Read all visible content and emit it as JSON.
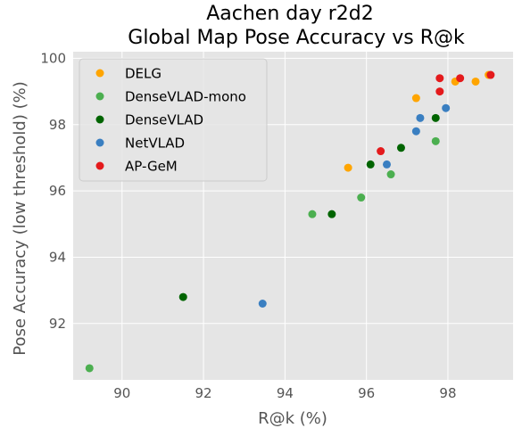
{
  "chart_data": {
    "type": "scatter",
    "title": [
      "Aachen day r2d2",
      "Global Map Pose Accuracy vs R@k"
    ],
    "xlabel": "R@k (%)",
    "ylabel": "Pose Accuracy (low threshold) (%)",
    "xlim": [
      88.8,
      99.6
    ],
    "ylim": [
      90.3,
      100.2
    ],
    "xticks": [
      90,
      92,
      94,
      96,
      98
    ],
    "yticks": [
      92,
      94,
      96,
      98,
      100
    ],
    "grid": true,
    "legend": "top-left",
    "series": [
      {
        "name": "DELG",
        "color": "#ffa500",
        "points": [
          [
            95.55,
            96.7
          ],
          [
            97.22,
            98.8
          ],
          [
            98.18,
            99.3
          ],
          [
            98.68,
            99.3
          ],
          [
            99.0,
            99.5
          ]
        ]
      },
      {
        "name": "DenseVLAD-mono",
        "color": "#4caf50",
        "points": [
          [
            89.2,
            90.65
          ],
          [
            94.67,
            95.3
          ],
          [
            95.87,
            95.8
          ],
          [
            96.6,
            96.5
          ],
          [
            97.7,
            97.5
          ]
        ]
      },
      {
        "name": "DenseVLAD",
        "color": "#006400",
        "points": [
          [
            91.5,
            92.8
          ],
          [
            95.15,
            95.3
          ],
          [
            96.1,
            96.8
          ],
          [
            96.85,
            97.3
          ],
          [
            97.7,
            98.2
          ]
        ]
      },
      {
        "name": "NetVLAD",
        "color": "#3a7fc1",
        "points": [
          [
            93.45,
            92.6
          ],
          [
            96.5,
            96.8
          ],
          [
            97.22,
            97.8
          ],
          [
            97.32,
            98.2
          ],
          [
            97.95,
            98.5
          ]
        ]
      },
      {
        "name": "AP-GeM",
        "color": "#e41a1c",
        "points": [
          [
            96.35,
            97.2
          ],
          [
            97.8,
            99.0
          ],
          [
            97.8,
            99.4
          ],
          [
            98.3,
            99.4
          ],
          [
            99.05,
            99.5
          ]
        ]
      }
    ]
  }
}
